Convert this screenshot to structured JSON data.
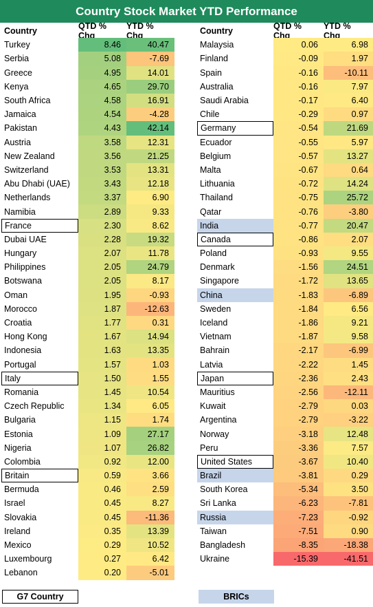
{
  "title": "Country Stock Market YTD Performance",
  "headers": {
    "country": "Country",
    "qtd": "QTD % Chg",
    "ytd": "YTD % Chg"
  },
  "left": [
    {
      "country": "Turkey",
      "qtd": "8.46",
      "ytd": "40.47",
      "tag": ""
    },
    {
      "country": "Serbia",
      "qtd": "5.08",
      "ytd": "-7.69",
      "tag": ""
    },
    {
      "country": "Greece",
      "qtd": "4.95",
      "ytd": "14.01",
      "tag": ""
    },
    {
      "country": "Kenya",
      "qtd": "4.65",
      "ytd": "29.70",
      "tag": ""
    },
    {
      "country": "South Africa",
      "qtd": "4.58",
      "ytd": "16.91",
      "tag": ""
    },
    {
      "country": "Jamaica",
      "qtd": "4.54",
      "ytd": "-4.28",
      "tag": ""
    },
    {
      "country": "Pakistan",
      "qtd": "4.43",
      "ytd": "42.14",
      "tag": ""
    },
    {
      "country": "Austria",
      "qtd": "3.58",
      "ytd": "12.31",
      "tag": ""
    },
    {
      "country": "New Zealand",
      "qtd": "3.56",
      "ytd": "21.25",
      "tag": ""
    },
    {
      "country": "Switzerland",
      "qtd": "3.53",
      "ytd": "13.31",
      "tag": ""
    },
    {
      "country": "Abu Dhabi (UAE)",
      "qtd": "3.43",
      "ytd": "12.18",
      "tag": ""
    },
    {
      "country": "Netherlands",
      "qtd": "3.37",
      "ytd": "6.90",
      "tag": ""
    },
    {
      "country": "Namibia",
      "qtd": "2.89",
      "ytd": "9.33",
      "tag": ""
    },
    {
      "country": "France",
      "qtd": "2.30",
      "ytd": "8.62",
      "tag": "g7"
    },
    {
      "country": "Dubai UAE",
      "qtd": "2.28",
      "ytd": "19.32",
      "tag": ""
    },
    {
      "country": "Hungary",
      "qtd": "2.07",
      "ytd": "11.78",
      "tag": ""
    },
    {
      "country": "Philippines",
      "qtd": "2.05",
      "ytd": "24.79",
      "tag": ""
    },
    {
      "country": "Botswana",
      "qtd": "2.05",
      "ytd": "8.17",
      "tag": ""
    },
    {
      "country": "Oman",
      "qtd": "1.95",
      "ytd": "-0.93",
      "tag": ""
    },
    {
      "country": "Morocco",
      "qtd": "1.87",
      "ytd": "-12.63",
      "tag": ""
    },
    {
      "country": "Croatia",
      "qtd": "1.77",
      "ytd": "0.31",
      "tag": ""
    },
    {
      "country": "Hong Kong",
      "qtd": "1.67",
      "ytd": "14.94",
      "tag": ""
    },
    {
      "country": "Indonesia",
      "qtd": "1.63",
      "ytd": "13.35",
      "tag": ""
    },
    {
      "country": "Portugal",
      "qtd": "1.57",
      "ytd": "1.03",
      "tag": ""
    },
    {
      "country": "Italy",
      "qtd": "1.50",
      "ytd": "1.55",
      "tag": "g7"
    },
    {
      "country": "Romania",
      "qtd": "1.45",
      "ytd": "10.54",
      "tag": ""
    },
    {
      "country": "Czech Republic",
      "qtd": "1.34",
      "ytd": "6.05",
      "tag": ""
    },
    {
      "country": "Bulgaria",
      "qtd": "1.15",
      "ytd": "1.74",
      "tag": ""
    },
    {
      "country": "Estonia",
      "qtd": "1.09",
      "ytd": "27.17",
      "tag": ""
    },
    {
      "country": "Nigeria",
      "qtd": "1.07",
      "ytd": "26.82",
      "tag": ""
    },
    {
      "country": "Colombia",
      "qtd": "0.92",
      "ytd": "12.00",
      "tag": ""
    },
    {
      "country": "Britain",
      "qtd": "0.59",
      "ytd": "3.66",
      "tag": "g7"
    },
    {
      "country": "Bermuda",
      "qtd": "0.46",
      "ytd": "2.59",
      "tag": ""
    },
    {
      "country": "Israel",
      "qtd": "0.45",
      "ytd": "8.27",
      "tag": ""
    },
    {
      "country": "Slovakia",
      "qtd": "0.45",
      "ytd": "-11.36",
      "tag": ""
    },
    {
      "country": "Ireland",
      "qtd": "0.35",
      "ytd": "13.39",
      "tag": ""
    },
    {
      "country": "Mexico",
      "qtd": "0.29",
      "ytd": "10.52",
      "tag": ""
    },
    {
      "country": "Luxembourg",
      "qtd": "0.27",
      "ytd": "6.42",
      "tag": ""
    },
    {
      "country": "Lebanon",
      "qtd": "0.20",
      "ytd": "-5.01",
      "tag": ""
    }
  ],
  "right": [
    {
      "country": "Malaysia",
      "qtd": "0.06",
      "ytd": "6.98",
      "tag": ""
    },
    {
      "country": "Finland",
      "qtd": "-0.09",
      "ytd": "1.97",
      "tag": ""
    },
    {
      "country": "Spain",
      "qtd": "-0.16",
      "ytd": "-10.11",
      "tag": ""
    },
    {
      "country": "Australia",
      "qtd": "-0.16",
      "ytd": "7.97",
      "tag": ""
    },
    {
      "country": "Saudi Arabia",
      "qtd": "-0.17",
      "ytd": "6.40",
      "tag": ""
    },
    {
      "country": "Chile",
      "qtd": "-0.29",
      "ytd": "0.97",
      "tag": ""
    },
    {
      "country": "Germany",
      "qtd": "-0.54",
      "ytd": "21.69",
      "tag": "g7"
    },
    {
      "country": "Ecuador",
      "qtd": "-0.55",
      "ytd": "5.97",
      "tag": ""
    },
    {
      "country": "Belgium",
      "qtd": "-0.57",
      "ytd": "13.27",
      "tag": ""
    },
    {
      "country": "Malta",
      "qtd": "-0.67",
      "ytd": "0.64",
      "tag": ""
    },
    {
      "country": "Lithuania",
      "qtd": "-0.72",
      "ytd": "14.24",
      "tag": ""
    },
    {
      "country": "Thailand",
      "qtd": "-0.75",
      "ytd": "25.72",
      "tag": ""
    },
    {
      "country": "Qatar",
      "qtd": "-0.76",
      "ytd": "-3.80",
      "tag": ""
    },
    {
      "country": "India",
      "qtd": "-0.77",
      "ytd": "20.47",
      "tag": "bric"
    },
    {
      "country": "Canada",
      "qtd": "-0.86",
      "ytd": "2.07",
      "tag": "g7"
    },
    {
      "country": "Poland",
      "qtd": "-0.93",
      "ytd": "9.55",
      "tag": ""
    },
    {
      "country": "Denmark",
      "qtd": "-1.56",
      "ytd": "24.51",
      "tag": ""
    },
    {
      "country": "Singapore",
      "qtd": "-1.72",
      "ytd": "13.65",
      "tag": ""
    },
    {
      "country": "China",
      "qtd": "-1.83",
      "ytd": "-6.89",
      "tag": "bric"
    },
    {
      "country": "Sweden",
      "qtd": "-1.84",
      "ytd": "6.56",
      "tag": ""
    },
    {
      "country": "Iceland",
      "qtd": "-1.86",
      "ytd": "9.21",
      "tag": ""
    },
    {
      "country": "Vietnam",
      "qtd": "-1.87",
      "ytd": "9.58",
      "tag": ""
    },
    {
      "country": "Bahrain",
      "qtd": "-2.17",
      "ytd": "-6.99",
      "tag": ""
    },
    {
      "country": "Latvia",
      "qtd": "-2.22",
      "ytd": "1.45",
      "tag": ""
    },
    {
      "country": "Japan",
      "qtd": "-2.36",
      "ytd": "2.43",
      "tag": "g7"
    },
    {
      "country": "Mauritius",
      "qtd": "-2.56",
      "ytd": "-12.11",
      "tag": ""
    },
    {
      "country": "Kuwait",
      "qtd": "-2.79",
      "ytd": "0.03",
      "tag": ""
    },
    {
      "country": "Argentina",
      "qtd": "-2.79",
      "ytd": "-3.22",
      "tag": ""
    },
    {
      "country": "Norway",
      "qtd": "-3.18",
      "ytd": "12.48",
      "tag": ""
    },
    {
      "country": "Peru",
      "qtd": "-3.36",
      "ytd": "7.57",
      "tag": ""
    },
    {
      "country": "United States",
      "qtd": "-3.67",
      "ytd": "10.40",
      "tag": "g7"
    },
    {
      "country": "Brazil",
      "qtd": "-3.81",
      "ytd": "0.29",
      "tag": "bric"
    },
    {
      "country": "South Korea",
      "qtd": "-5.34",
      "ytd": "3.50",
      "tag": ""
    },
    {
      "country": "Sri Lanka",
      "qtd": "-6.23",
      "ytd": "-7.81",
      "tag": ""
    },
    {
      "country": "Russia",
      "qtd": "-7.23",
      "ytd": "-0.92",
      "tag": "bric"
    },
    {
      "country": "Taiwan",
      "qtd": "-7.51",
      "ytd": "0.90",
      "tag": ""
    },
    {
      "country": "Bangladesh",
      "qtd": "-8.35",
      "ytd": "-18.38",
      "tag": ""
    },
    {
      "country": "Ukraine",
      "qtd": "-15.39",
      "ytd": "-41.51",
      "tag": ""
    }
  ],
  "legend": {
    "g7": "G7 Country",
    "bric": "BRICs"
  }
}
